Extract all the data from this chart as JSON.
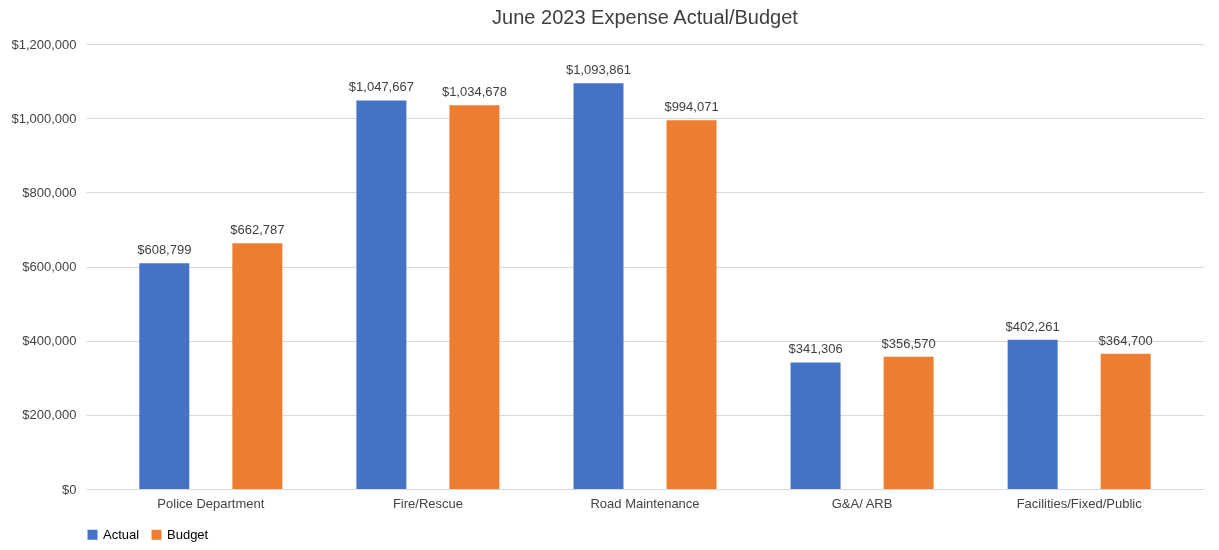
{
  "chart_data": {
    "type": "bar",
    "title": "June 2023 Expense Actual/Budget",
    "categories": [
      "Police Department",
      "Fire/Rescue",
      "Road Maintenance",
      "G&A/ ARB",
      "Facilities/Fixed/Public"
    ],
    "series": [
      {
        "name": "Actual",
        "color": "#4472c4",
        "values": [
          608799,
          1047667,
          1093861,
          341306,
          402261
        ],
        "value_labels": [
          "$608,799",
          "$1,047,667",
          "$1,093,861",
          "$341,306",
          "$402,261"
        ]
      },
      {
        "name": "Budget",
        "color": "#ed7d31",
        "values": [
          662787,
          1034678,
          994071,
          356570,
          364700
        ],
        "value_labels": [
          "$662,787",
          "$1,034,678",
          "$994,071",
          "$356,570",
          "$364,700"
        ]
      }
    ],
    "ylim": [
      0,
      1200000
    ],
    "yticks": [
      {
        "value": 0,
        "label": "$0"
      },
      {
        "value": 200000,
        "label": "$200,000"
      },
      {
        "value": 400000,
        "label": "$400,000"
      },
      {
        "value": 600000,
        "label": "$600,000"
      },
      {
        "value": 800000,
        "label": "$800,000"
      },
      {
        "value": 1000000,
        "label": "$1,000,000"
      },
      {
        "value": 1200000,
        "label": "$1,200,000"
      }
    ],
    "grid": "y",
    "legend": "bottom"
  }
}
